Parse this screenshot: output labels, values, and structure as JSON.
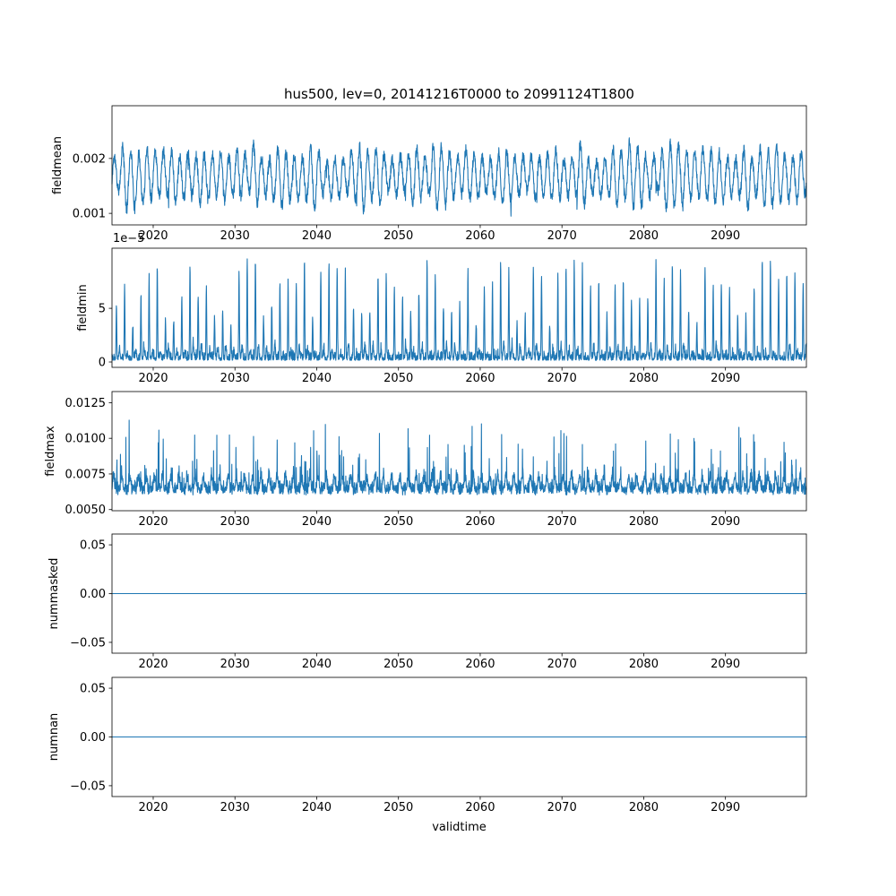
{
  "figure": {
    "title": "hus500, lev=0, 20141216T0000 to 20991124T1800",
    "xlabel": "validtime",
    "background": "#ffffff",
    "line_color": "#1f77b4",
    "spine_color": "#000000"
  },
  "chart_data": {
    "type": "line",
    "title": "hus500, lev=0, 20141216T0000 to 20991124T1800",
    "xlabel": "validtime",
    "x_start": 2014.96,
    "x_end": 2099.9,
    "x_ticks": [
      2020,
      2030,
      2040,
      2050,
      2060,
      2070,
      2080,
      2090
    ],
    "x_tick_labels": [
      "2020",
      "2030",
      "2040",
      "2050",
      "2060",
      "2070",
      "2080",
      "2090"
    ],
    "n_points": 3200,
    "grid": false,
    "legend": "none",
    "subplots": [
      {
        "ylabel": "fieldmean",
        "ylim": [
          0.00079,
          0.00296
        ],
        "yticks": [
          0.001,
          0.002
        ],
        "ytick_labels": [
          "0.001",
          "0.002"
        ],
        "series": {
          "name": "fieldmean",
          "kind": "noisy_seasonal",
          "approx_mean": 0.00168,
          "approx_min": 0.0009,
          "approx_max": 0.0028,
          "seed": 11
        }
      },
      {
        "ylabel": "fieldmin",
        "offset_text": "1e−5",
        "ylim": [
          -5e-06,
          0.000106
        ],
        "yticks": [
          0,
          5e-05
        ],
        "ytick_labels": [
          "0",
          "5"
        ],
        "series": {
          "name": "fieldmin",
          "kind": "annual_spikes",
          "approx_base": 5e-06,
          "approx_peak_min": 3e-05,
          "approx_peak_max": 9.5e-05,
          "seed": 22
        }
      },
      {
        "ylabel": "fieldmax",
        "ylim": [
          0.00492,
          0.01328
        ],
        "yticks": [
          0.005,
          0.0075,
          0.01,
          0.0125
        ],
        "ytick_labels": [
          "0.0050",
          "0.0075",
          "0.0100",
          "0.0125"
        ],
        "series": {
          "name": "fieldmax",
          "kind": "noisy_spiky",
          "approx_mean": 0.0068,
          "approx_min": 0.0055,
          "approx_max": 0.0128,
          "seed": 33
        }
      },
      {
        "ylabel": "nummasked",
        "ylim": [
          -0.0611,
          0.0611
        ],
        "yticks": [
          -0.05,
          0,
          0.05
        ],
        "ytick_labels": [
          "−0.05",
          "0.00",
          "0.05"
        ],
        "series": {
          "name": "nummasked",
          "kind": "constant",
          "value": 0
        }
      },
      {
        "ylabel": "numnan",
        "ylim": [
          -0.0611,
          0.0611
        ],
        "yticks": [
          -0.05,
          0,
          0.05
        ],
        "ytick_labels": [
          "−0.05",
          "0.00",
          "0.05"
        ],
        "series": {
          "name": "numnan",
          "kind": "constant",
          "value": 0
        }
      }
    ]
  }
}
